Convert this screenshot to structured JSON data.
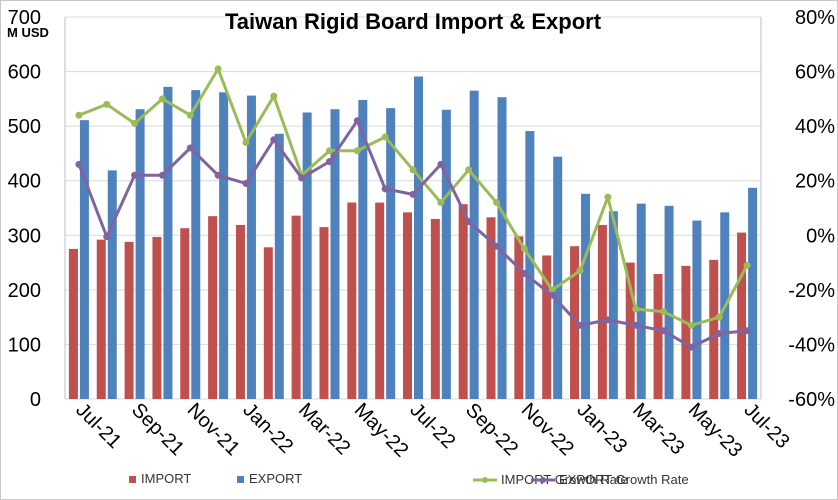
{
  "chart_data": {
    "type": "bar",
    "title": "Taiwan Rigid Board Import & Export",
    "y_unit_label": "M USD",
    "ylim": [
      0,
      700
    ],
    "y_ticks": [
      "0",
      "100",
      "200",
      "300",
      "400",
      "500",
      "600",
      "700"
    ],
    "y2lim": [
      -60,
      80
    ],
    "y2_ticks": [
      "-60%",
      "-40%",
      "-20%",
      "0%",
      "20%",
      "40%",
      "60%",
      "80%"
    ],
    "grid": true,
    "legend_position": "bottom",
    "categories": [
      "Jul-21",
      "Aug-21",
      "Sep-21",
      "Oct-21",
      "Nov-21",
      "Dec-21",
      "Jan-22",
      "Feb-22",
      "Mar-22",
      "Apr-22",
      "May-22",
      "Jun-22",
      "Jul-22",
      "Aug-22",
      "Sep-22",
      "Oct-22",
      "Nov-22",
      "Dec-22",
      "Jan-23",
      "Feb-23",
      "Mar-23",
      "Apr-23",
      "May-23",
      "Jun-23",
      "Jul-23"
    ],
    "x_tick_labels": [
      "Jul-21",
      "",
      "Sep-21",
      "",
      "Nov-21",
      "",
      "Jan-22",
      "",
      "Mar-22",
      "",
      "May-22",
      "",
      "Jul-22",
      "",
      "Sep-22",
      "",
      "Nov-22",
      "",
      "Jan-23",
      "",
      "Mar-23",
      "",
      "May-23",
      "",
      "Jul-23"
    ],
    "series": [
      {
        "name": "IMPORT",
        "kind": "bar",
        "axis": "left",
        "color": "#c0504d",
        "values": [
          275,
          292,
          288,
          297,
          313,
          335,
          319,
          278,
          336,
          315,
          360,
          360,
          342,
          330,
          357,
          333,
          298,
          263,
          280,
          319,
          250,
          229,
          244,
          255,
          305
        ]
      },
      {
        "name": "EXPORT",
        "kind": "bar",
        "axis": "left",
        "color": "#4f81bd",
        "values": [
          511,
          419,
          531,
          572,
          566,
          562,
          556,
          486,
          525,
          531,
          548,
          533,
          591,
          530,
          565,
          553,
          491,
          444,
          376,
          344,
          358,
          354,
          327,
          342,
          387
        ]
      },
      {
        "name": "IMPORT Growth Rate",
        "kind": "line",
        "axis": "right",
        "color": "#9bbb59",
        "values": [
          44,
          48,
          41,
          50,
          44,
          61,
          34,
          51,
          22,
          31,
          31,
          36,
          24,
          12,
          24,
          12,
          -5,
          -20,
          -13,
          14,
          -27,
          -28,
          -33,
          -30,
          -11
        ]
      },
      {
        "name": "EXPORT Growth Rate",
        "kind": "line",
        "axis": "right",
        "color": "#8064a2",
        "values": [
          26,
          -0.5,
          22,
          22,
          32,
          22,
          19,
          35,
          21,
          27,
          42,
          17,
          15,
          26,
          5,
          -4,
          -14,
          -22,
          -33,
          -31,
          -33,
          -35,
          -41,
          -36,
          -35
        ]
      }
    ]
  }
}
